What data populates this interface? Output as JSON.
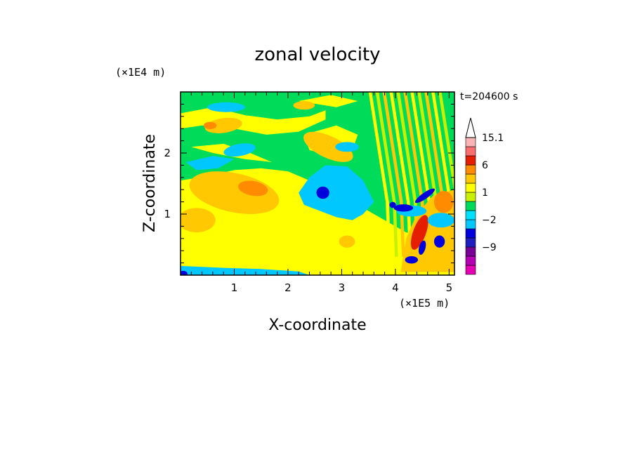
{
  "chart_data": {
    "type": "heatmap",
    "title": "zonal velocity",
    "xlabel": "X-coordinate",
    "ylabel": "Z-coordinate",
    "x_scale_label": "(×1E5 m)",
    "y_scale_label": "(×1E4 m)",
    "time_label": "t=204600 s",
    "xlim": [
      0,
      5.1
    ],
    "ylim": [
      0,
      3.0
    ],
    "x_ticks": [
      1,
      2,
      3,
      4,
      5
    ],
    "y_ticks": [
      1,
      2
    ],
    "colorbar": {
      "levels": [
        -15,
        -12,
        -9,
        -6,
        -3,
        -2,
        -1,
        0,
        1,
        2,
        3,
        6,
        9,
        12,
        15.1
      ],
      "tick_labels": [
        {
          "value": 15.1,
          "label": "15.1"
        },
        {
          "value": 6,
          "label": "6"
        },
        {
          "value": 1,
          "label": "1"
        },
        {
          "value": -2,
          "label": "−2"
        },
        {
          "value": -9,
          "label": "−9"
        }
      ],
      "colors": [
        "#e600b4",
        "#b400b4",
        "#780096",
        "#1e1ebe",
        "#0000dc",
        "#00c8ff",
        "#00e0ff",
        "#00dc5a",
        "#c8f000",
        "#ffff00",
        "#ffc800",
        "#ff8c00",
        "#e61e00",
        "#fa6e6e",
        "#fab4b4"
      ]
    }
  }
}
